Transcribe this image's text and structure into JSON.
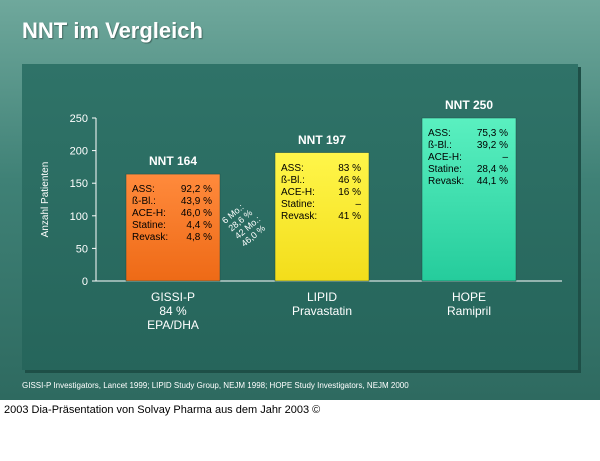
{
  "slide": {
    "title": "NNT im Vergleich",
    "source": "GISSI-P Investigators, Lancet 1999; LIPID Study Group, NEJM 1998; HOPE Study Investigators, NEJM 2000"
  },
  "caption": "2003 Dia-Präsentation von Solvay Pharma aus dem Jahr 2003 ©",
  "colors": {
    "gissi_top": "#ff8a3c",
    "gissi_bottom": "#ee6a16",
    "lipid_top": "#fff64a",
    "lipid_bottom": "#f3dd1a",
    "hope_top": "#5af0c0",
    "hope_bottom": "#25cc9c",
    "axis": "#ffffff"
  },
  "chart_data": {
    "type": "bar",
    "title": "NNT im Vergleich",
    "ylabel": "Anzahl Patienten",
    "xlabel": "",
    "ylim": [
      0,
      250
    ],
    "yticks": [
      "0",
      "50",
      "100",
      "150",
      "200",
      "250"
    ],
    "categories": [
      {
        "name": "GISSI-P",
        "lines": [
          "GISSI-P",
          "84 %",
          "EPA/DHA"
        ]
      },
      {
        "name": "LIPID",
        "lines": [
          "LIPID",
          "Pravastatin"
        ]
      },
      {
        "name": "HOPE",
        "lines": [
          "HOPE",
          "Ramipril"
        ]
      }
    ],
    "values": [
      164,
      197,
      250
    ],
    "bar_labels": [
      "NNT 164",
      "NNT 197",
      "NNT 250"
    ],
    "details": [
      [
        {
          "label": "ASS:",
          "value": "92,2 %"
        },
        {
          "label": "ß-Bl.:",
          "value": "43,9 %"
        },
        {
          "label": "ACE-H:",
          "value": "46,0 %"
        },
        {
          "label": "Statine:",
          "value": "4,4 %"
        },
        {
          "label": "Revask:",
          "value": "4,8 %"
        }
      ],
      [
        {
          "label": "ASS:",
          "value": "83 %"
        },
        {
          "label": "ß-Bl.:",
          "value": "46 %"
        },
        {
          "label": "ACE-H:",
          "value": "16 %"
        },
        {
          "label": "Statine:",
          "value": "–"
        },
        {
          "label": "Revask:",
          "value": "41 %"
        }
      ],
      [
        {
          "label": "ASS:",
          "value": "75,3 %"
        },
        {
          "label": "ß-Bl.:",
          "value": "39,2 %"
        },
        {
          "label": "ACE-H:",
          "value": "–"
        },
        {
          "label": "Statine:",
          "value": "28,4 %"
        },
        {
          "label": "Revask:",
          "value": "44,1 %"
        }
      ]
    ],
    "annotations": [
      "6 Mo.:",
      "28,6 %",
      "42 Mo.:",
      "46,0 %"
    ]
  }
}
